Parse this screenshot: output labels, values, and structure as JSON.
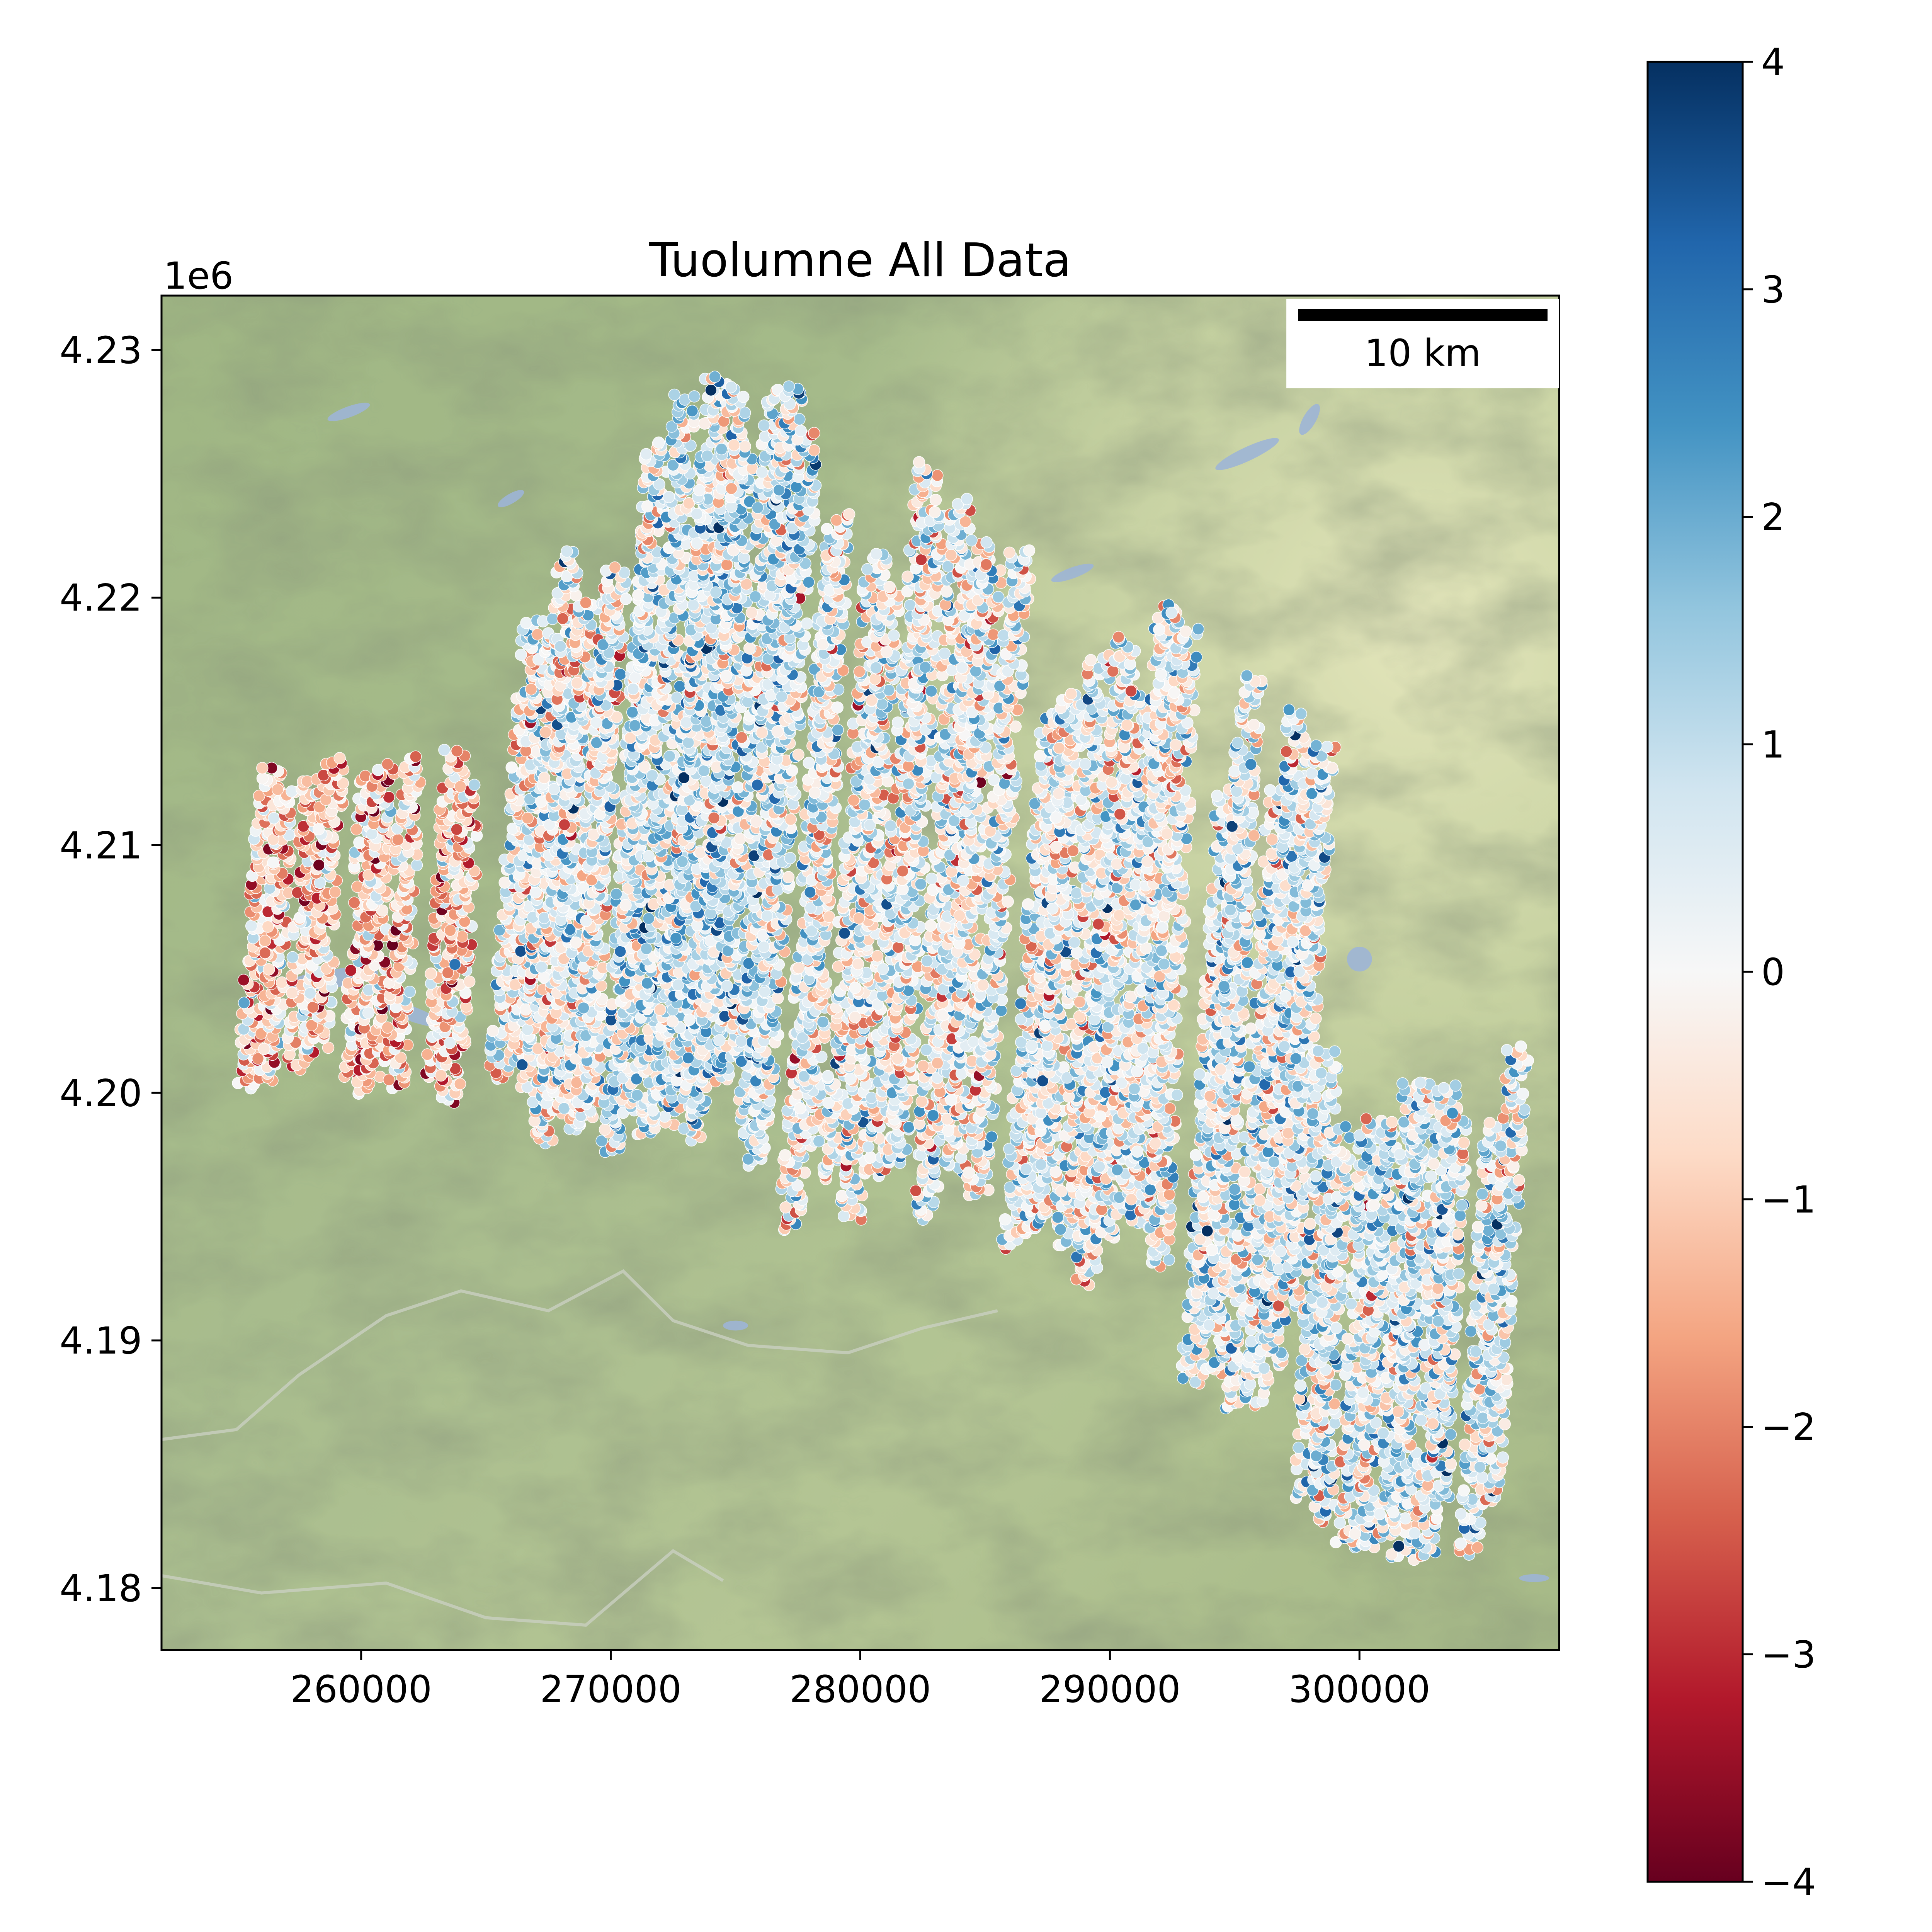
{
  "chart_data": {
    "type": "scatter",
    "title": "Tuolumne All Data",
    "xlabel": "",
    "ylabel": "",
    "y_offset_label": "1e6",
    "xlim": [
      252000,
      308000
    ],
    "ylim": [
      4177500,
      4232200
    ],
    "x_ticks": [
      260000,
      270000,
      280000,
      290000,
      300000
    ],
    "x_tick_labels": [
      "260000",
      "270000",
      "280000",
      "290000",
      "300000"
    ],
    "y_ticks": [
      4180000,
      4190000,
      4200000,
      4210000,
      4220000,
      4230000
    ],
    "y_tick_labels": [
      "4.18",
      "4.19",
      "4.20",
      "4.21",
      "4.22",
      "4.23"
    ],
    "grid": false,
    "colorbar": {
      "colormap": "RdBu",
      "range": [
        -4,
        4
      ],
      "ticks": [
        4,
        3,
        2,
        1,
        0,
        -1,
        -2,
        -3,
        -4
      ],
      "tick_labels": [
        "4",
        "3",
        "2",
        "1",
        "0",
        "−1",
        "−2",
        "−3",
        "−4"
      ]
    },
    "scale_bar": {
      "length_m": 10000,
      "label": "10 km"
    },
    "basemap": "shaded terrain (green relief)",
    "colors": {
      "cmap_stops": [
        "#67001f",
        "#b2182b",
        "#d6604d",
        "#f4a582",
        "#fddbc7",
        "#f7f7f7",
        "#d1e5f0",
        "#92c5de",
        "#4393c3",
        "#2166ac",
        "#053061"
      ],
      "terrain": "#a8bd8c",
      "terrain_dark": "#7a8c66",
      "terrain_light": "#d8e0b0",
      "water": "#9db5d6"
    },
    "track_groups": [
      {
        "x_start": 255000,
        "x_end": 264500,
        "y_low": 4199500,
        "y_high": 4215000,
        "tracks": 9,
        "bias": -1.0
      },
      {
        "x_start": 265500,
        "x_end": 269500,
        "y_low": 4197800,
        "y_high": 4222500,
        "tracks": 7,
        "bias": 0.2
      },
      {
        "x_start": 269800,
        "x_end": 276500,
        "y_low": 4196800,
        "y_high": 4229600,
        "tracks": 10,
        "bias": 0.8
      },
      {
        "x_start": 277000,
        "x_end": 285500,
        "y_low": 4194000,
        "y_high": 4226000,
        "tracks": 10,
        "bias": 0.2
      },
      {
        "x_start": 286000,
        "x_end": 292500,
        "y_low": 4191000,
        "y_high": 4220000,
        "tracks": 9,
        "bias": 0.3
      },
      {
        "x_start": 293000,
        "x_end": 297500,
        "y_low": 4187000,
        "y_high": 4217000,
        "tracks": 7,
        "bias": 0.5
      },
      {
        "x_start": 297500,
        "x_end": 305500,
        "y_low": 4180500,
        "y_high": 4202000,
        "tracks": 10,
        "bias": 0.7
      }
    ]
  }
}
